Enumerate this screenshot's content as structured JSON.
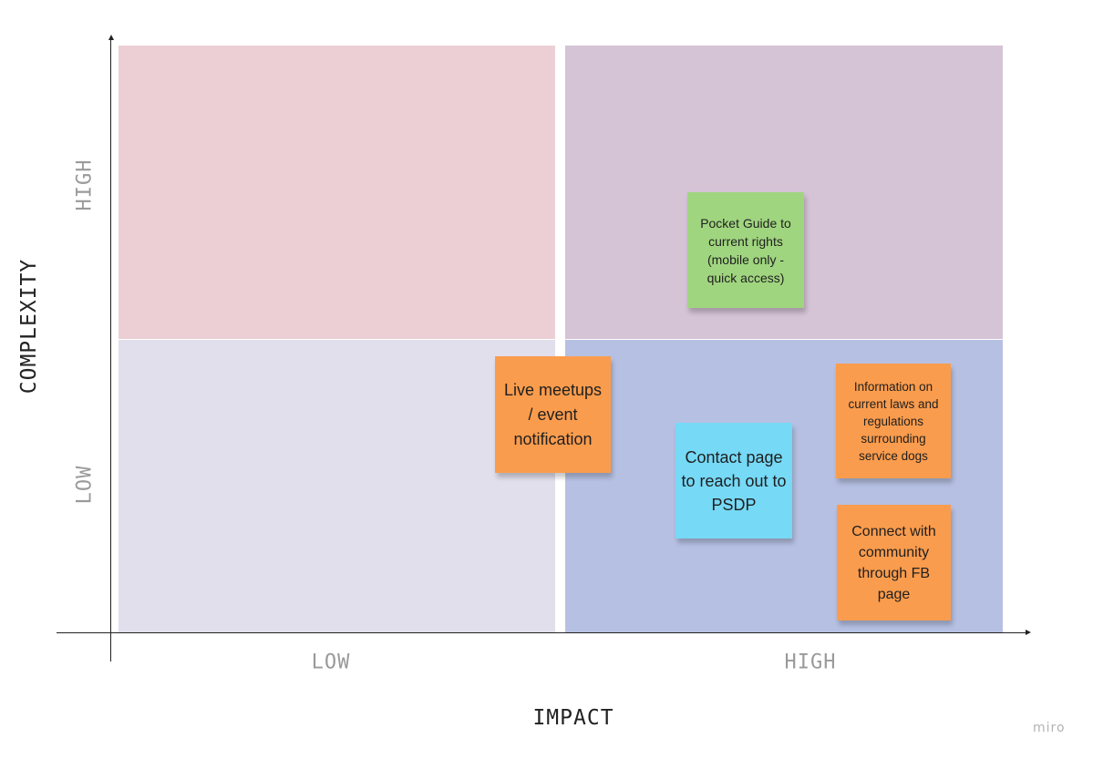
{
  "matrix": {
    "y_axis": {
      "title": "COMPLEXITY",
      "high_label": "HIGH",
      "low_label": "LOW"
    },
    "x_axis": {
      "title": "IMPACT",
      "low_label": "LOW",
      "high_label": "HIGH"
    },
    "quadrant_colors": {
      "high_complexity_low_impact": "#eccfd5",
      "high_complexity_high_impact": "#d5c3d6",
      "low_complexity_low_impact": "#e1dfec",
      "low_complexity_high_impact": "#b6c0e3"
    }
  },
  "stickies": [
    {
      "text": "Pocket Guide to current rights (mobile only - quick access)",
      "color": "#a0d57f",
      "quadrant": "high complexity / high impact"
    },
    {
      "text": "Live meetups / event notification",
      "color": "#fa9c4d",
      "quadrant": "low complexity / straddles low-high impact"
    },
    {
      "text": "Contact page to reach out to PSDP",
      "color": "#76d9f6",
      "quadrant": "low complexity / high impact"
    },
    {
      "text": "Information on current laws and regulations surrounding service dogs",
      "color": "#fa9c4d",
      "quadrant": "low complexity / high impact"
    },
    {
      "text": "Connect with community through FB page",
      "color": "#fa9c4d",
      "quadrant": "low complexity / high impact"
    }
  ],
  "branding": {
    "logo_text": "miro"
  }
}
